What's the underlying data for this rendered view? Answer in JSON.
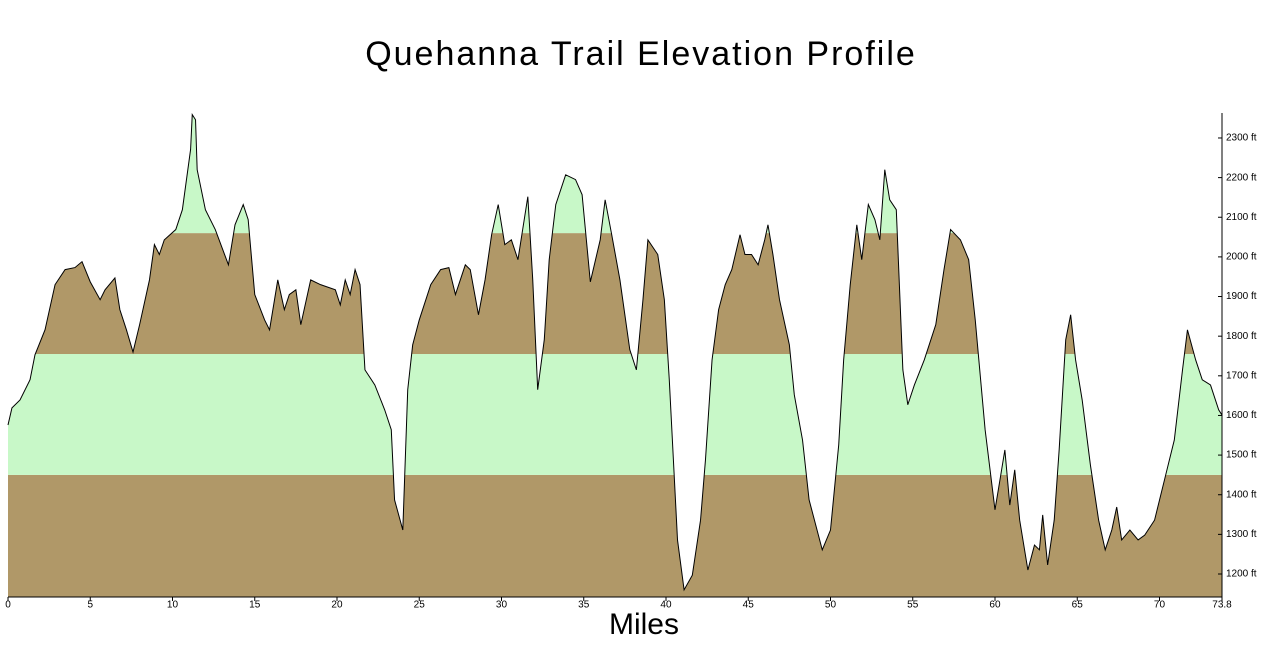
{
  "chart_data": {
    "type": "area",
    "title": "Quehanna Trail Elevation Profile",
    "x_label": "Miles",
    "x": [
      0,
      0.24,
      0.73,
      1.34,
      1.64,
      2.25,
      2.86,
      3.47,
      4.07,
      4.5,
      5.0,
      5.6,
      5.9,
      6.5,
      6.8,
      7.2,
      7.6,
      8.0,
      8.6,
      8.9,
      9.2,
      9.5,
      10.2,
      10.6,
      11.1,
      11.2,
      11.4,
      11.5,
      12.0,
      12.6,
      13.4,
      13.8,
      14.3,
      14.6,
      15.0,
      15.6,
      15.9,
      16.4,
      16.8,
      17.1,
      17.5,
      17.8,
      18.4,
      19.0,
      19.9,
      20.2,
      20.5,
      20.8,
      21.1,
      21.4,
      21.7,
      22.3,
      22.9,
      23.3,
      23.5,
      24.0,
      24.3,
      24.6,
      25.0,
      25.7,
      26.3,
      26.8,
      27.2,
      27.8,
      28.1,
      28.6,
      29.0,
      29.4,
      29.8,
      30.2,
      30.6,
      31.0,
      31.6,
      31.9,
      32.2,
      32.6,
      32.9,
      33.3,
      33.9,
      34.5,
      34.9,
      35.4,
      36.0,
      36.3,
      36.7,
      37.2,
      37.8,
      38.2,
      38.6,
      38.9,
      39.5,
      39.9,
      40.2,
      40.7,
      41.1,
      41.6,
      42.1,
      42.4,
      42.8,
      43.2,
      43.6,
      44.0,
      44.5,
      44.8,
      45.2,
      45.6,
      46.0,
      46.2,
      46.5,
      46.9,
      47.5,
      47.8,
      48.3,
      48.7,
      49.5,
      50.0,
      50.5,
      50.8,
      51.2,
      51.6,
      51.9,
      52.3,
      52.7,
      53.0,
      53.3,
      53.6,
      54.0,
      54.4,
      54.7,
      55.1,
      55.7,
      56.4,
      56.9,
      57.3,
      57.9,
      58.4,
      58.8,
      59.4,
      59.7,
      60.0,
      60.3,
      60.6,
      60.9,
      61.2,
      61.5,
      62.0,
      62.4,
      62.7,
      62.9,
      63.2,
      63.6,
      63.9,
      64.3,
      64.6,
      64.9,
      65.3,
      65.8,
      66.3,
      66.7,
      67.1,
      67.4,
      67.7,
      68.2,
      68.7,
      69.1,
      69.7,
      70.3,
      70.9,
      71.4,
      71.7,
      72.2,
      72.6,
      73.1,
      73.6,
      73.8
    ],
    "values": [
      1576,
      1619,
      1639,
      1690,
      1753,
      1816,
      1930,
      1968,
      1973,
      1988,
      1937,
      1892,
      1917,
      1947,
      1867,
      1816,
      1760,
      1829,
      1942,
      2031,
      2006,
      2043,
      2069,
      2119,
      2271,
      2359,
      2346,
      2220,
      2119,
      2069,
      1980,
      2081,
      2132,
      2094,
      1905,
      1841,
      1816,
      1942,
      1867,
      1905,
      1917,
      1829,
      1942,
      1930,
      1917,
      1879,
      1942,
      1905,
      1968,
      1930,
      1715,
      1677,
      1614,
      1564,
      1387,
      1311,
      1665,
      1778,
      1841,
      1930,
      1968,
      1973,
      1905,
      1980,
      1968,
      1854,
      1942,
      2056,
      2132,
      2031,
      2043,
      1993,
      2152,
      1942,
      1665,
      1791,
      1993,
      2132,
      2207,
      2195,
      2157,
      1937,
      2043,
      2144,
      2056,
      1942,
      1766,
      1715,
      1892,
      2043,
      2006,
      1892,
      1690,
      1286,
      1160,
      1197,
      1336,
      1488,
      1740,
      1867,
      1930,
      1968,
      2056,
      2006,
      2006,
      1980,
      2043,
      2081,
      2006,
      1892,
      1778,
      1652,
      1538,
      1387,
      1261,
      1311,
      1526,
      1740,
      1930,
      2081,
      1993,
      2132,
      2094,
      2043,
      2220,
      2144,
      2119,
      1715,
      1627,
      1677,
      1740,
      1829,
      1968,
      2069,
      2043,
      1993,
      1841,
      1564,
      1463,
      1362,
      1437,
      1513,
      1374,
      1463,
      1336,
      1210,
      1273,
      1261,
      1349,
      1223,
      1336,
      1513,
      1791,
      1854,
      1740,
      1639,
      1475,
      1336,
      1261,
      1311,
      1369,
      1286,
      1311,
      1286,
      1298,
      1336,
      1437,
      1538,
      1715,
      1816,
      1740,
      1690,
      1677,
      1614,
      1601
    ],
    "xlim": [
      0,
      73.8
    ],
    "xticks": [
      0,
      5,
      10,
      15,
      20,
      25,
      30,
      35,
      40,
      45,
      50,
      55,
      60,
      65,
      70,
      73.8
    ],
    "ylim": [
      1142,
      2363
    ],
    "yticks": [
      {
        "value": 1200,
        "label": "1200 ft"
      },
      {
        "value": 1300,
        "label": "1300 ft"
      },
      {
        "value": 1400,
        "label": "1400 ft"
      },
      {
        "value": 1500,
        "label": "1500 ft"
      },
      {
        "value": 1600,
        "label": "1600 ft"
      },
      {
        "value": 1700,
        "label": "1700 ft"
      },
      {
        "value": 1800,
        "label": "1800 ft"
      },
      {
        "value": 1900,
        "label": "1900 ft"
      },
      {
        "value": 2000,
        "label": "2000 ft"
      },
      {
        "value": 2100,
        "label": "2100 ft"
      },
      {
        "value": 2200,
        "label": "2200 ft"
      },
      {
        "value": 2300,
        "label": "2300 ft"
      }
    ],
    "y_axis_side": "right",
    "band_edges": [
      1450,
      1755,
      2060
    ],
    "band_colors": [
      "#b09868",
      "#c8f8c8",
      "#b09868",
      "#c8f8c8"
    ],
    "line_color": "#000000"
  }
}
